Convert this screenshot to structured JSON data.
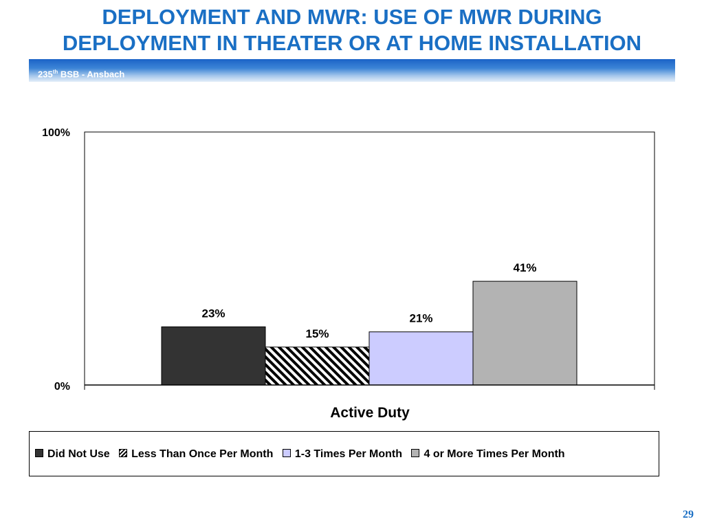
{
  "slide": {
    "title_line1": "DEPLOYMENT AND MWR: USE OF MWR DURING",
    "title_line2": "DEPLOYMENT IN THEATER OR AT HOME INSTALLATION",
    "subtitle_main": "235",
    "subtitle_sup": "th",
    "subtitle_rest": " BSB - Ansbach",
    "page_number": "29",
    "colors": {
      "title": "#1a6fc4",
      "band_dark": "#1b63c7",
      "band_light": "#e4eef9"
    }
  },
  "chart_data": {
    "type": "bar",
    "categories": [
      "Active Duty"
    ],
    "xlabel": "Active Duty",
    "ylim": [
      0,
      100
    ],
    "yticks": [
      "0%",
      "100%"
    ],
    "grid": false,
    "legend_position": "bottom",
    "series": [
      {
        "name": "Did Not Use",
        "values": [
          23
        ],
        "label": "23%",
        "color": "#333333",
        "pattern": "solid"
      },
      {
        "name": "Less Than Once Per Month",
        "values": [
          15
        ],
        "label": "15%",
        "color": "#000000",
        "pattern": "diagonal-hatch"
      },
      {
        "name": "1-3 Times Per Month",
        "values": [
          21
        ],
        "label": "21%",
        "color": "#ccccff",
        "pattern": "solid"
      },
      {
        "name": "4 or More Times Per Month",
        "values": [
          41
        ],
        "label": "41%",
        "color": "#b3b3b3",
        "pattern": "solid"
      }
    ]
  }
}
